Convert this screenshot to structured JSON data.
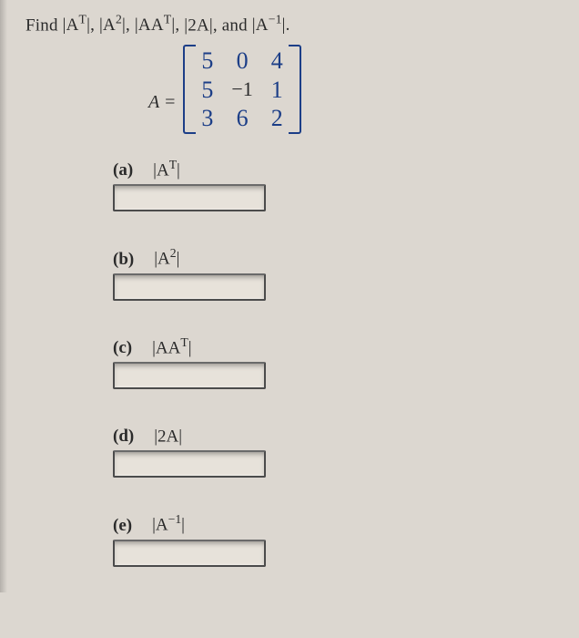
{
  "prompt": {
    "lead": "Find ",
    "t1": "|A",
    "t1sup": "T",
    "t1end": "|, ",
    "t2": "|A",
    "t2sup": "2",
    "t2end": "|, ",
    "t3": "|AA",
    "t3sup": "T",
    "t3end": "|, ",
    "t4": "|2A|, ",
    "and": "and ",
    "t5": "|A",
    "t5sup": "−1",
    "t5end": "|."
  },
  "matrix": {
    "Aeq": "A =",
    "rows": [
      [
        "5",
        "0",
        "4"
      ],
      [
        "5",
        "−1",
        "1"
      ],
      [
        "3",
        "6",
        "2"
      ]
    ],
    "handwritten_color": "#1c3e87",
    "given_cell": {
      "row": 1,
      "col": 1,
      "value": "−1"
    }
  },
  "parts": {
    "a": {
      "tag": "(a)",
      "expr_pre": "|A",
      "sup": "T",
      "expr_post": "|",
      "answer": ""
    },
    "b": {
      "tag": "(b)",
      "expr_pre": "|A",
      "sup": "2",
      "expr_post": "|",
      "answer": ""
    },
    "c": {
      "tag": "(c)",
      "expr_pre": "|AA",
      "sup": "T",
      "expr_post": "|",
      "answer": ""
    },
    "d": {
      "tag": "(d)",
      "expr_pre": "|2A|",
      "sup": "",
      "expr_post": "",
      "answer": ""
    },
    "e": {
      "tag": "(e)",
      "expr_pre": "|A",
      "sup": "−1",
      "expr_post": "|",
      "answer": ""
    }
  }
}
